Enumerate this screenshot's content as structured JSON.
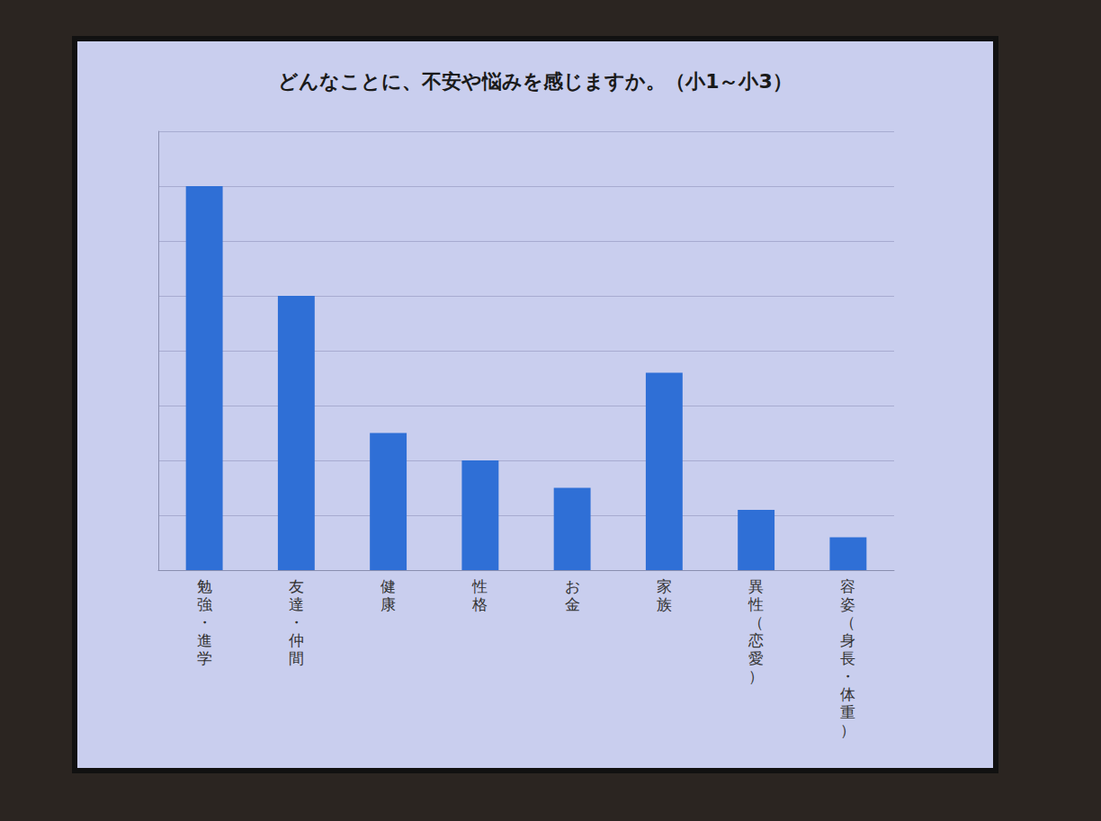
{
  "chart_data": {
    "type": "bar",
    "title": "どんなことに、不安や悩みを感じますか。（小1～小3）",
    "categories": [
      "勉強・進学",
      "友達・仲間",
      "健康",
      "性格",
      "お金",
      "家族",
      "異性（恋愛）",
      "容姿（身長・体重）"
    ],
    "values": [
      7.0,
      5.0,
      2.5,
      2.0,
      1.5,
      3.6,
      1.1,
      0.6
    ],
    "color": "#2f6fd6",
    "ylim": [
      0,
      8
    ],
    "yticks": [
      0,
      1,
      2,
      3,
      4,
      5,
      6,
      7,
      8
    ],
    "grid": true,
    "tick_labels": "x"
  }
}
